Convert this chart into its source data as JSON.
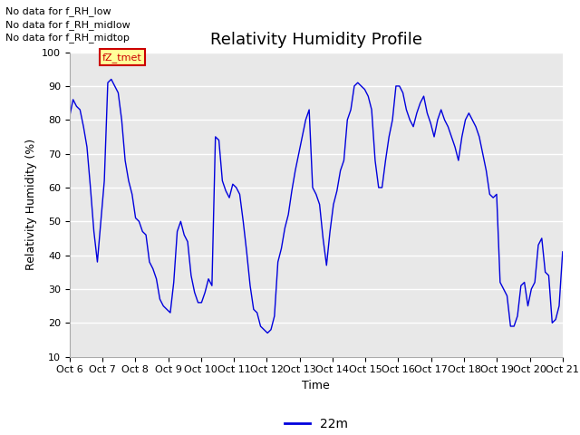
{
  "title": "Relativity Humidity Profile",
  "ylabel": "Relativity Humidity (%)",
  "xlabel": "Time",
  "ylim": [
    10,
    100
  ],
  "yticks": [
    10,
    20,
    30,
    40,
    50,
    60,
    70,
    80,
    90,
    100
  ],
  "x_tick_labels": [
    "Oct 6",
    "Oct 7",
    "Oct 8",
    "Oct 9",
    "Oct 10",
    "Oct 11",
    "Oct 12",
    "Oct 13",
    "Oct 14",
    "Oct 15",
    "Oct 16",
    "Oct 17",
    "Oct 18",
    "Oct 19",
    "Oct 20",
    "Oct 21"
  ],
  "line_color": "#0000dd",
  "line_label": "22m",
  "legend_texts": [
    "No data for f_RH_low",
    "No data for f_RH_midlow",
    "No data for f_RH_midtop"
  ],
  "annotation_text": "fZ_tmet",
  "annotation_color": "#cc0000",
  "annotation_bg": "#ffff99",
  "fig_bg": "#ffffff",
  "plot_bg": "#e8e8e8",
  "grid_color": "#ffffff",
  "title_fontsize": 13,
  "label_fontsize": 9,
  "tick_fontsize": 8,
  "rh_data": [
    81,
    86,
    84,
    83,
    78,
    72,
    60,
    47,
    38,
    50,
    62,
    91,
    92,
    90,
    88,
    80,
    68,
    62,
    58,
    51,
    50,
    47,
    46,
    38,
    36,
    33,
    27,
    25,
    24,
    23,
    32,
    47,
    50,
    46,
    44,
    34,
    29,
    26,
    26,
    29,
    33,
    31,
    75,
    74,
    62,
    59,
    57,
    61,
    60,
    58,
    50,
    41,
    31,
    24,
    23,
    19,
    18,
    17,
    18,
    22,
    38,
    42,
    48,
    52,
    59,
    65,
    70,
    75,
    80,
    83,
    60,
    58,
    55,
    45,
    37,
    47,
    55,
    59,
    65,
    68,
    80,
    83,
    90,
    91,
    90,
    89,
    87,
    83,
    68,
    60,
    60,
    68,
    75,
    80,
    90,
    90,
    88,
    83,
    80,
    78,
    82,
    85,
    87,
    82,
    79,
    75,
    80,
    83,
    80,
    78,
    75,
    72,
    68,
    75,
    80,
    82,
    80,
    78,
    75,
    70,
    65,
    58,
    57,
    58,
    32,
    30,
    28,
    19,
    19,
    22,
    31,
    32,
    25,
    30,
    32,
    43,
    45,
    35,
    34,
    20,
    21,
    25,
    41
  ]
}
